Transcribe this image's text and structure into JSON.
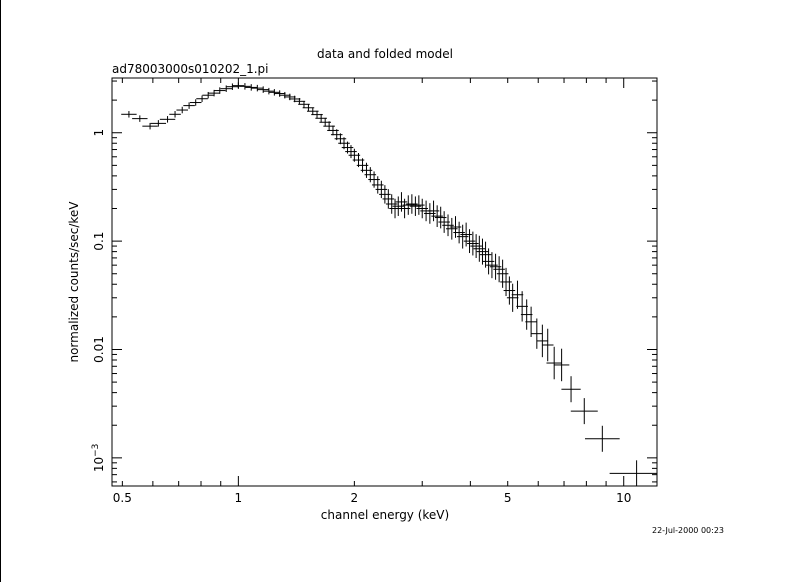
{
  "chart_data": {
    "type": "scatter",
    "title": "data and folded model",
    "subtitle": "ad78003000s010202_1.pi",
    "xlabel": "channel energy (keV)",
    "ylabel": "normalized counts/sec/keV",
    "x_scale": "log",
    "y_scale": "log",
    "xlim": [
      0.47,
      12.2
    ],
    "ylim": [
      0.00055,
      3.2
    ],
    "grid": false,
    "x_ticks": [
      {
        "v": 0.5,
        "label": "0.5"
      },
      {
        "v": 1,
        "label": "1"
      },
      {
        "v": 2,
        "label": "2"
      },
      {
        "v": 5,
        "label": "5"
      },
      {
        "v": 10,
        "label": "10"
      }
    ],
    "y_ticks": [
      {
        "v": 1,
        "label": "1"
      },
      {
        "v": 0.1,
        "label": "0.1"
      },
      {
        "v": 0.01,
        "label": "0.01"
      }
    ],
    "y_tick_exp": {
      "v": 0.001,
      "base": "10",
      "exp": "−3"
    },
    "series": [
      {
        "points": [
          [
            0.52,
            1.48,
            0.02,
            0.03
          ],
          [
            0.555,
            1.35,
            0.02,
            0.03
          ],
          [
            0.59,
            1.15,
            0.02,
            0.03
          ],
          [
            0.62,
            1.22,
            0.02,
            0.03
          ],
          [
            0.655,
            1.33,
            0.02,
            0.03
          ],
          [
            0.685,
            1.48,
            0.015,
            0.03
          ],
          [
            0.715,
            1.62,
            0.015,
            0.03
          ],
          [
            0.745,
            1.78,
            0.015,
            0.03
          ],
          [
            0.775,
            1.9,
            0.015,
            0.03
          ],
          [
            0.805,
            2.06,
            0.015,
            0.03
          ],
          [
            0.835,
            2.22,
            0.015,
            0.03
          ],
          [
            0.865,
            2.32,
            0.015,
            0.03
          ],
          [
            0.895,
            2.45,
            0.015,
            0.03
          ],
          [
            0.93,
            2.55,
            0.015,
            0.03
          ],
          [
            0.965,
            2.66,
            0.015,
            0.03
          ],
          [
            1.0,
            2.72,
            0.015,
            0.03
          ],
          [
            1.04,
            2.68,
            0.015,
            0.03
          ],
          [
            1.08,
            2.62,
            0.015,
            0.03
          ],
          [
            1.12,
            2.58,
            0.015,
            0.03
          ],
          [
            1.16,
            2.5,
            0.015,
            0.03
          ],
          [
            1.2,
            2.42,
            0.015,
            0.03
          ],
          [
            1.24,
            2.36,
            0.015,
            0.03
          ],
          [
            1.28,
            2.3,
            0.015,
            0.03
          ],
          [
            1.32,
            2.22,
            0.015,
            0.03
          ],
          [
            1.36,
            2.14,
            0.015,
            0.03
          ],
          [
            1.4,
            2.05,
            0.015,
            0.03
          ],
          [
            1.44,
            1.95,
            0.015,
            0.03
          ],
          [
            1.48,
            1.83,
            0.015,
            0.03
          ],
          [
            1.52,
            1.7,
            0.015,
            0.035
          ],
          [
            1.56,
            1.58,
            0.015,
            0.035
          ],
          [
            1.6,
            1.47,
            0.015,
            0.035
          ],
          [
            1.64,
            1.36,
            0.015,
            0.04
          ],
          [
            1.68,
            1.25,
            0.015,
            0.04
          ],
          [
            1.72,
            1.15,
            0.015,
            0.045
          ],
          [
            1.76,
            1.05,
            0.015,
            0.045
          ],
          [
            1.8,
            0.96,
            0.015,
            0.05
          ],
          [
            1.84,
            0.88,
            0.015,
            0.05
          ],
          [
            1.88,
            0.8,
            0.015,
            0.055
          ],
          [
            1.92,
            0.73,
            0.015,
            0.055
          ],
          [
            1.96,
            0.67,
            0.015,
            0.06
          ],
          [
            2.0,
            0.62,
            0.015,
            0.06
          ],
          [
            2.05,
            0.56,
            0.015,
            0.065
          ],
          [
            2.1,
            0.5,
            0.015,
            0.065
          ],
          [
            2.15,
            0.45,
            0.015,
            0.07
          ],
          [
            2.2,
            0.41,
            0.015,
            0.07
          ],
          [
            2.25,
            0.37,
            0.015,
            0.075
          ],
          [
            2.3,
            0.33,
            0.015,
            0.08
          ],
          [
            2.35,
            0.3,
            0.015,
            0.08
          ],
          [
            2.4,
            0.27,
            0.015,
            0.085
          ],
          [
            2.45,
            0.245,
            0.015,
            0.09
          ],
          [
            2.5,
            0.22,
            0.015,
            0.09
          ],
          [
            2.55,
            0.2,
            0.015,
            0.09
          ],
          [
            2.6,
            0.21,
            0.015,
            0.09
          ],
          [
            2.65,
            0.23,
            0.015,
            0.09
          ],
          [
            2.7,
            0.2,
            0.015,
            0.09
          ],
          [
            2.76,
            0.215,
            0.015,
            0.09
          ],
          [
            2.82,
            0.22,
            0.015,
            0.09
          ],
          [
            2.88,
            0.21,
            0.015,
            0.09
          ],
          [
            2.94,
            0.215,
            0.015,
            0.09
          ],
          [
            3.0,
            0.2,
            0.015,
            0.09
          ],
          [
            3.07,
            0.19,
            0.015,
            0.095
          ],
          [
            3.14,
            0.18,
            0.015,
            0.095
          ],
          [
            3.21,
            0.19,
            0.015,
            0.095
          ],
          [
            3.28,
            0.17,
            0.015,
            0.1
          ],
          [
            3.35,
            0.165,
            0.015,
            0.1
          ],
          [
            3.42,
            0.15,
            0.015,
            0.1
          ],
          [
            3.5,
            0.14,
            0.015,
            0.1
          ],
          [
            3.58,
            0.13,
            0.015,
            0.1
          ],
          [
            3.66,
            0.135,
            0.015,
            0.1
          ],
          [
            3.74,
            0.12,
            0.015,
            0.1
          ],
          [
            3.82,
            0.11,
            0.015,
            0.11
          ],
          [
            3.9,
            0.115,
            0.015,
            0.11
          ],
          [
            3.98,
            0.1,
            0.015,
            0.11
          ],
          [
            4.06,
            0.095,
            0.015,
            0.11
          ],
          [
            4.14,
            0.09,
            0.015,
            0.11
          ],
          [
            4.22,
            0.085,
            0.015,
            0.12
          ],
          [
            4.3,
            0.08,
            0.015,
            0.12
          ],
          [
            4.38,
            0.075,
            0.015,
            0.12
          ],
          [
            4.46,
            0.065,
            0.015,
            0.12
          ],
          [
            4.55,
            0.06,
            0.015,
            0.12
          ],
          [
            4.65,
            0.058,
            0.015,
            0.12
          ],
          [
            4.75,
            0.055,
            0.015,
            0.12
          ],
          [
            4.85,
            0.05,
            0.015,
            0.13
          ],
          [
            4.95,
            0.042,
            0.015,
            0.13
          ],
          [
            5.05,
            0.035,
            0.015,
            0.13
          ],
          [
            5.15,
            0.03,
            0.015,
            0.13
          ],
          [
            5.3,
            0.032,
            0.015,
            0.13
          ],
          [
            5.45,
            0.025,
            0.015,
            0.14
          ],
          [
            5.6,
            0.021,
            0.015,
            0.14
          ],
          [
            5.75,
            0.018,
            0.015,
            0.14
          ],
          [
            5.95,
            0.014,
            0.015,
            0.14
          ],
          [
            6.15,
            0.012,
            0.015,
            0.15
          ],
          [
            6.35,
            0.011,
            0.015,
            0.15
          ],
          [
            6.6,
            0.0075,
            0.02,
            0.15
          ],
          [
            6.9,
            0.0072,
            0.02,
            0.15
          ],
          [
            7.3,
            0.0043,
            0.025,
            0.12
          ],
          [
            7.9,
            0.0027,
            0.035,
            0.12
          ],
          [
            8.8,
            0.0015,
            0.045,
            0.12
          ],
          [
            10.8,
            0.00072,
            0.07,
            0.12
          ]
        ]
      }
    ]
  },
  "timestamp": "22-Jul-2000 00:23"
}
